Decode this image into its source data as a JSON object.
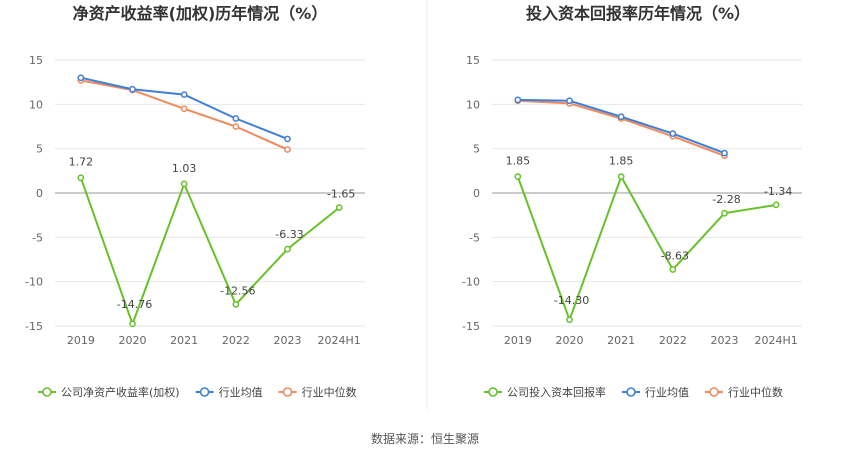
{
  "source_note": "数据来源：恒生聚源",
  "colors": {
    "company": "#66c12a",
    "avg": "#3f7fd8",
    "median": "#f08a5d",
    "grid": "#e6e6e6",
    "axis": "#555555"
  },
  "chart_data": [
    {
      "type": "line",
      "title": "净资产收益率(加权)历年情况（%）",
      "categories": [
        "2019",
        "2020",
        "2021",
        "2022",
        "2023",
        "2024H1"
      ],
      "ylim": [
        -15,
        15
      ],
      "yticks": [
        15,
        10,
        5,
        0,
        -5,
        -10,
        -15
      ],
      "grid": true,
      "legend": "bottom",
      "series": [
        {
          "name": "公司净资产收益率(加权)",
          "key": "company",
          "values": [
            1.72,
            -14.76,
            1.03,
            -12.56,
            -6.33,
            -1.65
          ],
          "labels": [
            "1.72",
            "-14.76",
            "1.03",
            "-12.56",
            "-6.33",
            "-1.65"
          ]
        },
        {
          "name": "行业均值",
          "key": "avg",
          "values": [
            13.0,
            11.7,
            11.1,
            8.4,
            6.1,
            null
          ]
        },
        {
          "name": "行业中位数",
          "key": "median",
          "values": [
            12.7,
            11.6,
            9.5,
            7.5,
            4.9,
            null
          ]
        }
      ]
    },
    {
      "type": "line",
      "title": "投入资本回报率历年情况（%）",
      "categories": [
        "2019",
        "2020",
        "2021",
        "2022",
        "2023",
        "2024H1"
      ],
      "ylim": [
        -15,
        15
      ],
      "yticks": [
        15,
        10,
        5,
        0,
        -5,
        -10,
        -15
      ],
      "grid": true,
      "legend": "bottom",
      "series": [
        {
          "name": "公司投入资本回报率",
          "key": "company",
          "values": [
            1.85,
            -14.3,
            1.85,
            -8.63,
            -2.28,
            -1.34
          ],
          "labels": [
            "1.85",
            "-14.30",
            "1.85",
            "-8.63",
            "-2.28",
            "-1.34"
          ]
        },
        {
          "name": "行业均值",
          "key": "avg",
          "values": [
            10.5,
            10.4,
            8.6,
            6.7,
            4.5,
            null
          ]
        },
        {
          "name": "行业中位数",
          "key": "median",
          "values": [
            10.4,
            10.1,
            8.4,
            6.4,
            4.2,
            null
          ]
        }
      ]
    }
  ]
}
